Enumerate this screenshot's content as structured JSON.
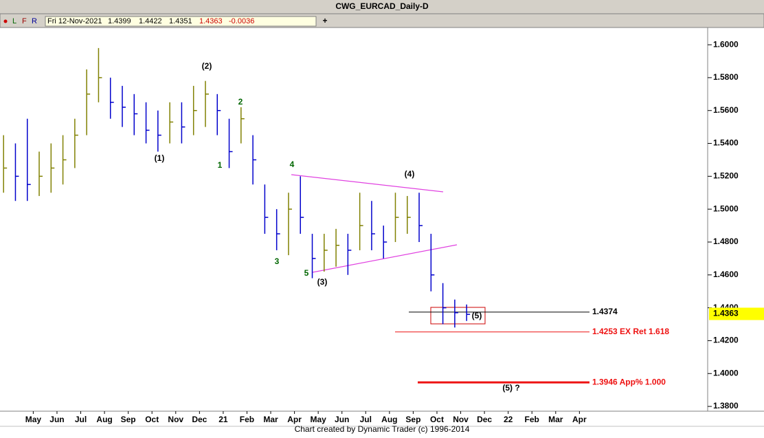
{
  "chart_data": {
    "type": "ohlc",
    "title": "CWG_EURCAD_Daily-D",
    "toolbar": {
      "letters": [
        "L",
        "F",
        "R"
      ],
      "date": "Fri 12-Nov-2021",
      "open": "1.4399",
      "high": "1.4422",
      "low": "1.4351",
      "close": "1.4363",
      "change": "-0.0036"
    },
    "x": [
      -1.25,
      -0.75,
      -0.25,
      0.25,
      0.75,
      1.25,
      1.75,
      2.25,
      2.75,
      3.25,
      3.75,
      4.25,
      4.75,
      5.25,
      5.75,
      6.25,
      6.75,
      7.25,
      7.75,
      8.25,
      8.75,
      9.25,
      9.75,
      10.25,
      10.75,
      11.25,
      11.75,
      12.25,
      12.75,
      13.25,
      13.75,
      14.25,
      14.75,
      15.25,
      15.75,
      16.25,
      16.75,
      17.25,
      17.75,
      18.25
    ],
    "high": [
      1.545,
      1.54,
      1.555,
      1.535,
      1.54,
      1.545,
      1.555,
      1.585,
      1.598,
      1.58,
      1.575,
      1.57,
      1.565,
      1.56,
      1.565,
      1.565,
      1.575,
      1.578,
      1.57,
      1.555,
      1.562,
      1.545,
      1.515,
      1.5,
      1.51,
      1.52,
      1.485,
      1.485,
      1.488,
      1.485,
      1.51,
      1.505,
      1.49,
      1.51,
      1.508,
      1.51,
      1.485,
      1.455,
      1.445,
      1.442
    ],
    "low": [
      1.51,
      1.505,
      1.505,
      1.508,
      1.51,
      1.515,
      1.525,
      1.545,
      1.565,
      1.555,
      1.55,
      1.545,
      1.54,
      1.535,
      1.54,
      1.54,
      1.545,
      1.55,
      1.545,
      1.525,
      1.54,
      1.515,
      1.485,
      1.475,
      1.472,
      1.485,
      1.458,
      1.462,
      1.465,
      1.46,
      1.475,
      1.475,
      1.47,
      1.48,
      1.485,
      1.48,
      1.45,
      1.43,
      1.428,
      1.432
    ],
    "close": [
      1.525,
      1.52,
      1.515,
      1.52,
      1.525,
      1.53,
      1.545,
      1.57,
      1.58,
      1.565,
      1.562,
      1.558,
      1.548,
      1.545,
      1.553,
      1.55,
      1.56,
      1.57,
      1.56,
      1.535,
      1.555,
      1.53,
      1.495,
      1.485,
      1.5,
      1.495,
      1.47,
      1.475,
      1.478,
      1.475,
      1.49,
      1.485,
      1.48,
      1.495,
      1.495,
      1.49,
      1.46,
      1.44,
      1.437,
      1.436
    ],
    "up_color": "#808000",
    "down_color": "#0000cc",
    "xlim": [
      -1.4,
      28.4
    ],
    "xticks": [
      {
        "value": 0,
        "label": "May"
      },
      {
        "value": 1,
        "label": "Jun"
      },
      {
        "value": 2,
        "label": "Jul"
      },
      {
        "value": 3,
        "label": "Aug"
      },
      {
        "value": 4,
        "label": "Sep"
      },
      {
        "value": 5,
        "label": "Oct"
      },
      {
        "value": 6,
        "label": "Nov"
      },
      {
        "value": 7,
        "label": "Dec"
      },
      {
        "value": 8,
        "label": "21"
      },
      {
        "value": 9,
        "label": "Feb"
      },
      {
        "value": 10,
        "label": "Mar"
      },
      {
        "value": 11,
        "label": "Apr"
      },
      {
        "value": 12,
        "label": "May"
      },
      {
        "value": 13,
        "label": "Jun"
      },
      {
        "value": 14,
        "label": "Jul"
      },
      {
        "value": 15,
        "label": "Aug"
      },
      {
        "value": 16,
        "label": "Sep"
      },
      {
        "value": 17,
        "label": "Oct"
      },
      {
        "value": 18,
        "label": "Nov"
      },
      {
        "value": 19,
        "label": "Dec"
      },
      {
        "value": 20,
        "label": "22"
      },
      {
        "value": 21,
        "label": "Feb"
      },
      {
        "value": 22,
        "label": "Mar"
      },
      {
        "value": 23,
        "label": "Apr"
      }
    ],
    "ylim": [
      1.3771,
      1.6105
    ],
    "yticks": [
      {
        "value": 1.6,
        "label": "1.6000"
      },
      {
        "value": 1.58,
        "label": "1.5800"
      },
      {
        "value": 1.56,
        "label": "1.5600"
      },
      {
        "value": 1.54,
        "label": "1.5400"
      },
      {
        "value": 1.52,
        "label": "1.5200"
      },
      {
        "value": 1.5,
        "label": "1.5000"
      },
      {
        "value": 1.48,
        "label": "1.4800"
      },
      {
        "value": 1.46,
        "label": "1.4600"
      },
      {
        "value": 1.44,
        "label": "1.4400"
      },
      {
        "value": 1.42,
        "label": "1.4200"
      },
      {
        "value": 1.4,
        "label": "1.4000"
      },
      {
        "value": 1.38,
        "label": "1.3800"
      }
    ],
    "last_price": {
      "value": 1.4363,
      "label": "1.4363"
    },
    "levels": [
      {
        "value": 1.4374,
        "label": "1.4374",
        "color": "#000000"
      },
      {
        "value": 1.4253,
        "label": "1.4253 EX Ret 1.618",
        "color": "#ee1111"
      },
      {
        "value": 1.3946,
        "label": "1.3946 App% 1.000",
        "color": "#ee1111"
      }
    ],
    "wave_labels": [
      "(1)",
      "(2)",
      "1",
      "2",
      "3",
      "4",
      "5",
      "(3)",
      "(4)",
      "(5)",
      "(5) ?"
    ],
    "footer": "Chart created by Dynamic Trader  (c)  1996-2014"
  }
}
